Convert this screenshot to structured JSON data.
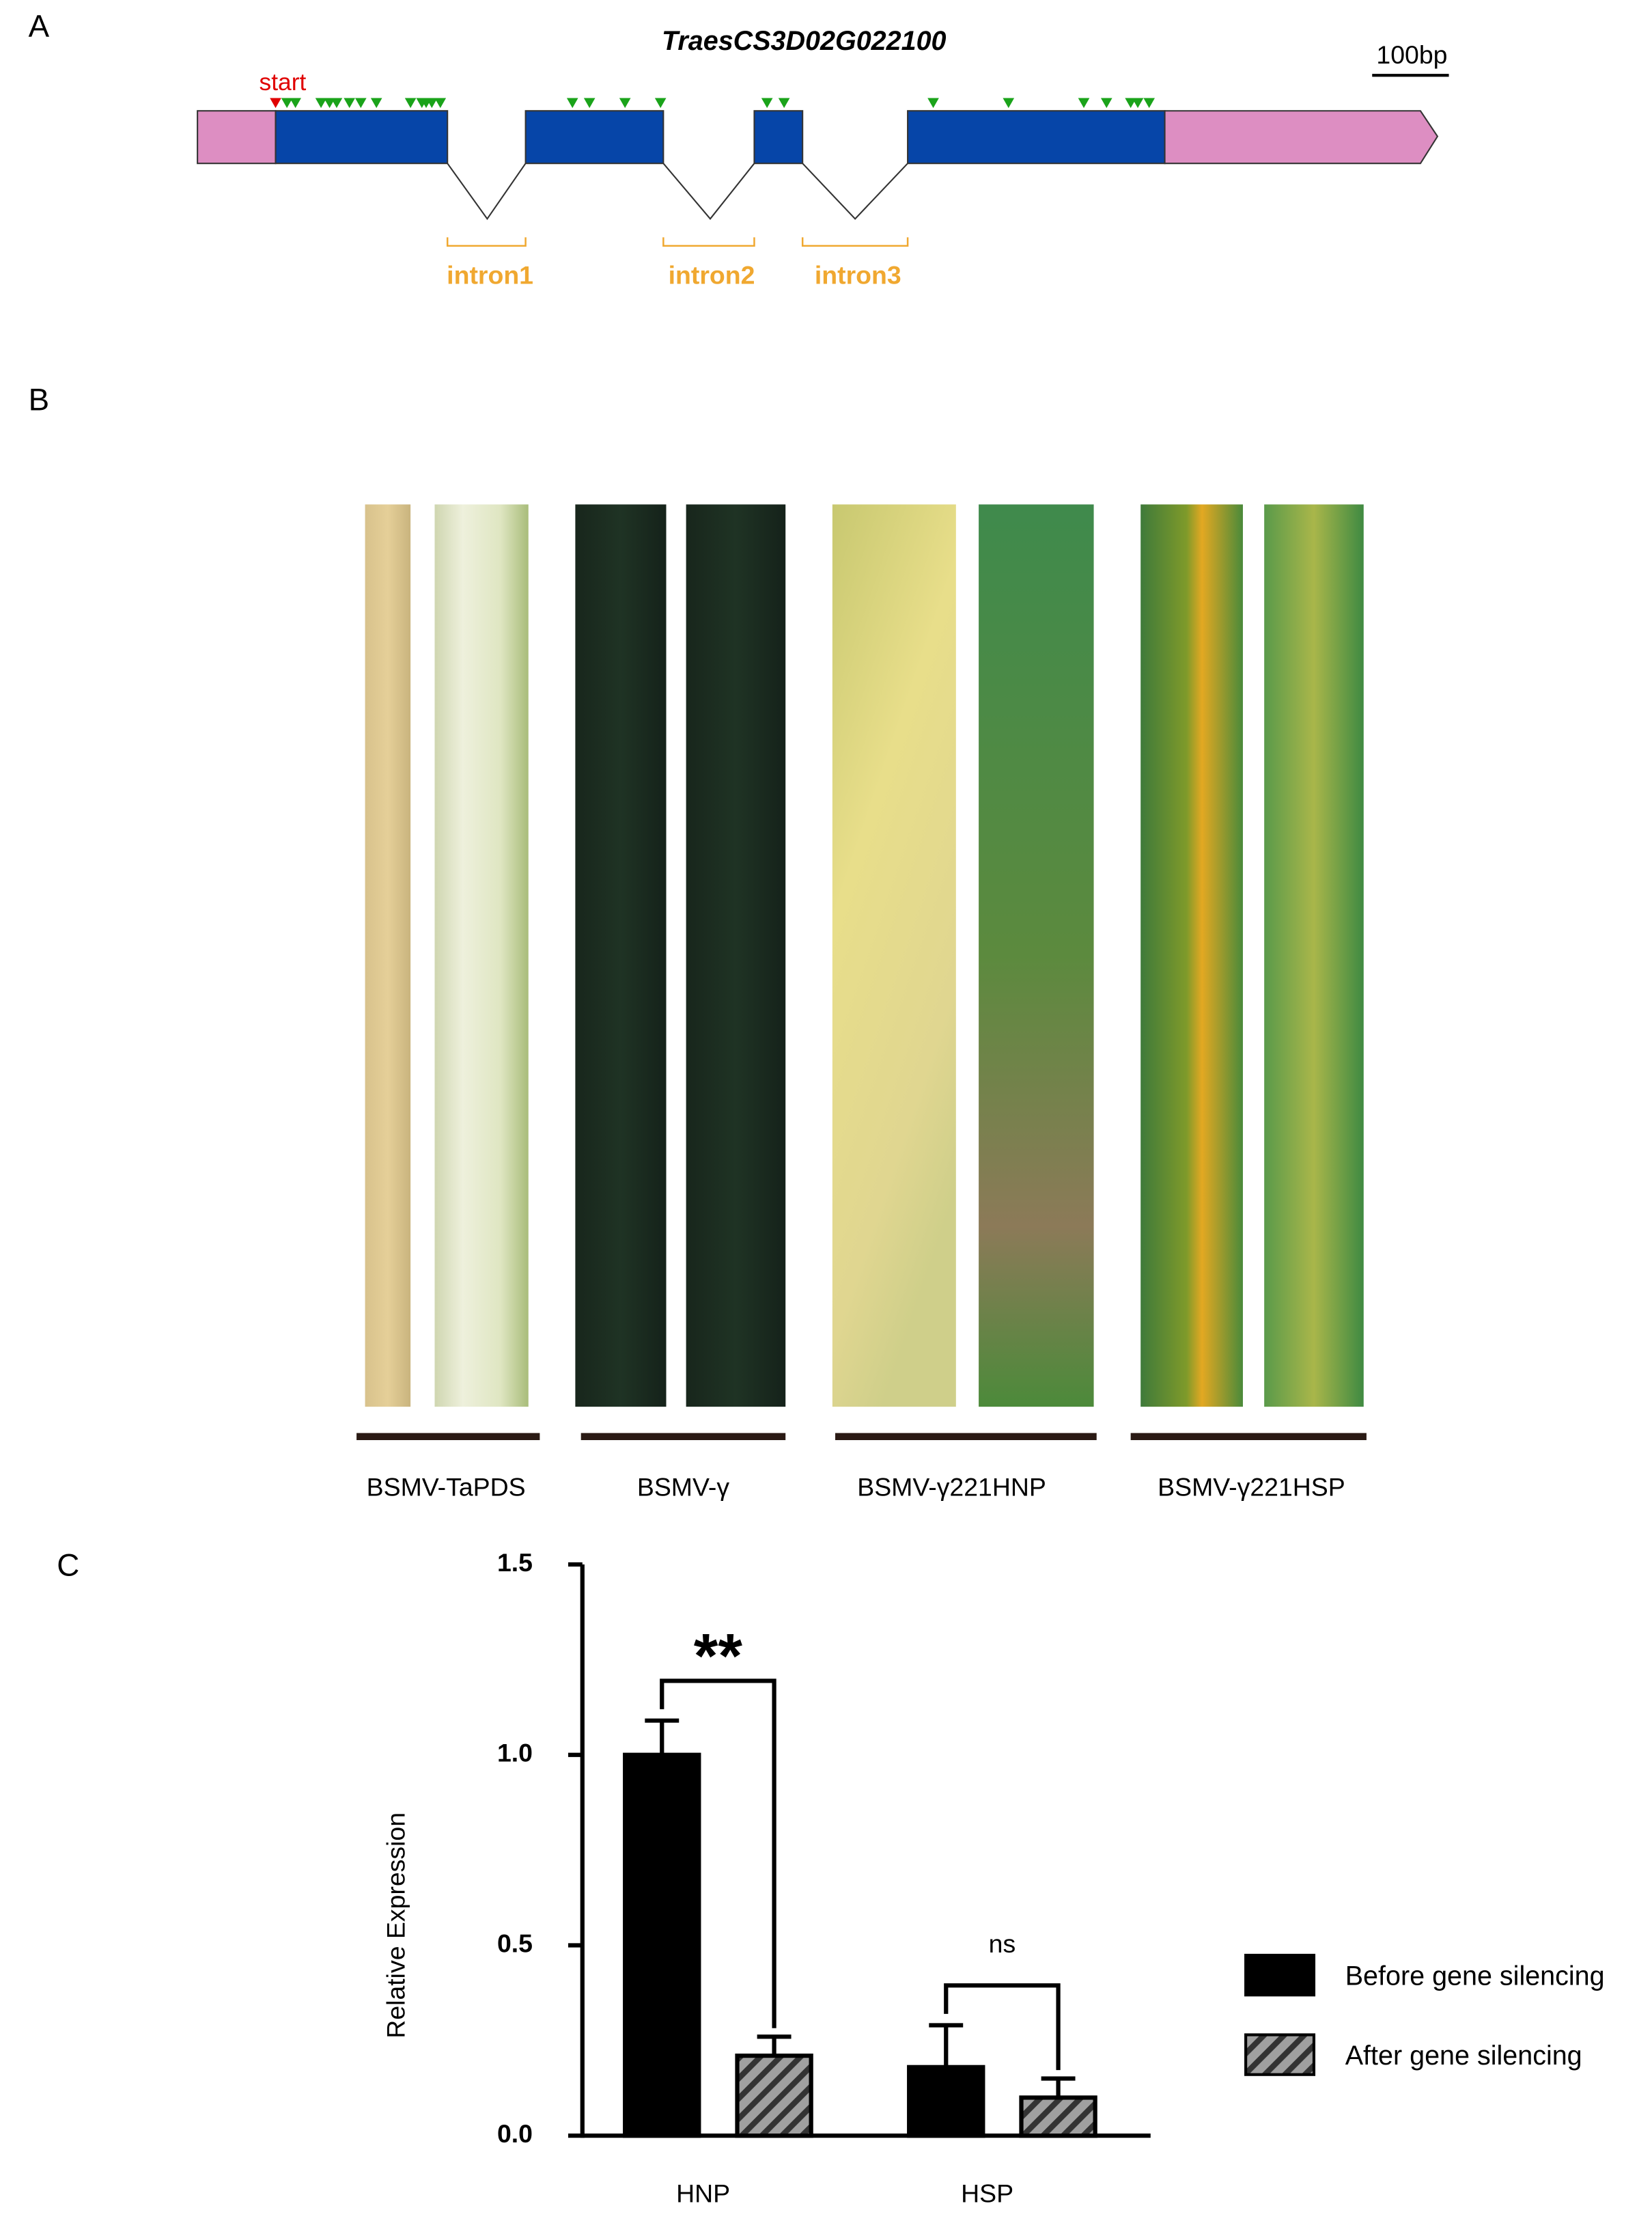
{
  "panel_a": {
    "letter": "A",
    "title": "TraesCS3D02G022100",
    "start_label": "start",
    "scale_label": "100bp",
    "introns": [
      "intron1",
      "intron2",
      "intron3"
    ]
  },
  "panel_b": {
    "letter": "B",
    "groups": [
      "BSMV-TaPDS",
      "BSMV-γ",
      "BSMV-γ221HNP",
      "BSMV-γ221HSP"
    ]
  },
  "panel_c": {
    "letter": "C"
  },
  "chart_data": {
    "type": "bar",
    "ylabel": "Relative Expression",
    "categories": [
      "HNP",
      "HSP"
    ],
    "series": [
      {
        "name": "Before gene silencing",
        "color": "#000000",
        "values": [
          1.0,
          0.18
        ],
        "errors": [
          0.09,
          0.11
        ]
      },
      {
        "name": "After gene silencing",
        "color": "#a0a0a0",
        "pattern": "hatched",
        "values": [
          0.21,
          0.1
        ],
        "errors": [
          0.05,
          0.05
        ]
      }
    ],
    "ylim": [
      0,
      1.5
    ],
    "yticks": [
      {
        "value": 0,
        "label": "0.0"
      },
      0.5,
      {
        "value": 1,
        "label": "1.0"
      },
      1.5
    ],
    "annotations": [
      "**",
      "ns"
    ],
    "legend": "right"
  }
}
